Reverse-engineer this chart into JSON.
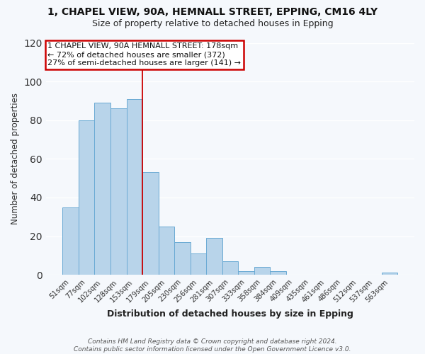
{
  "title_line1": "1, CHAPEL VIEW, 90A, HEMNALL STREET, EPPING, CM16 4LY",
  "title_line2": "Size of property relative to detached houses in Epping",
  "xlabel": "Distribution of detached houses by size in Epping",
  "ylabel": "Number of detached properties",
  "bar_labels": [
    "51sqm",
    "77sqm",
    "102sqm",
    "128sqm",
    "153sqm",
    "179sqm",
    "205sqm",
    "230sqm",
    "256sqm",
    "281sqm",
    "307sqm",
    "333sqm",
    "358sqm",
    "384sqm",
    "409sqm",
    "435sqm",
    "461sqm",
    "486sqm",
    "512sqm",
    "537sqm",
    "563sqm"
  ],
  "bar_values": [
    35,
    80,
    89,
    86,
    91,
    53,
    25,
    17,
    11,
    19,
    7,
    2,
    4,
    2,
    0,
    0,
    0,
    0,
    0,
    0,
    1
  ],
  "bar_color": "#b8d4ea",
  "bar_edge_color": "#6aaad4",
  "vline_x_index": 5,
  "vline_color": "#cc0000",
  "annotation_text": "1 CHAPEL VIEW, 90A HEMNALL STREET: 178sqm\n← 72% of detached houses are smaller (372)\n27% of semi-detached houses are larger (141) →",
  "annotation_box_color": "#ffffff",
  "annotation_border_color": "#cc0000",
  "ylim": [
    0,
    120
  ],
  "yticks": [
    0,
    20,
    40,
    60,
    80,
    100,
    120
  ],
  "footer_text": "Contains HM Land Registry data © Crown copyright and database right 2024.\nContains public sector information licensed under the Open Government Licence v3.0.",
  "bg_color": "#f5f8fc",
  "grid_color": "#ffffff"
}
